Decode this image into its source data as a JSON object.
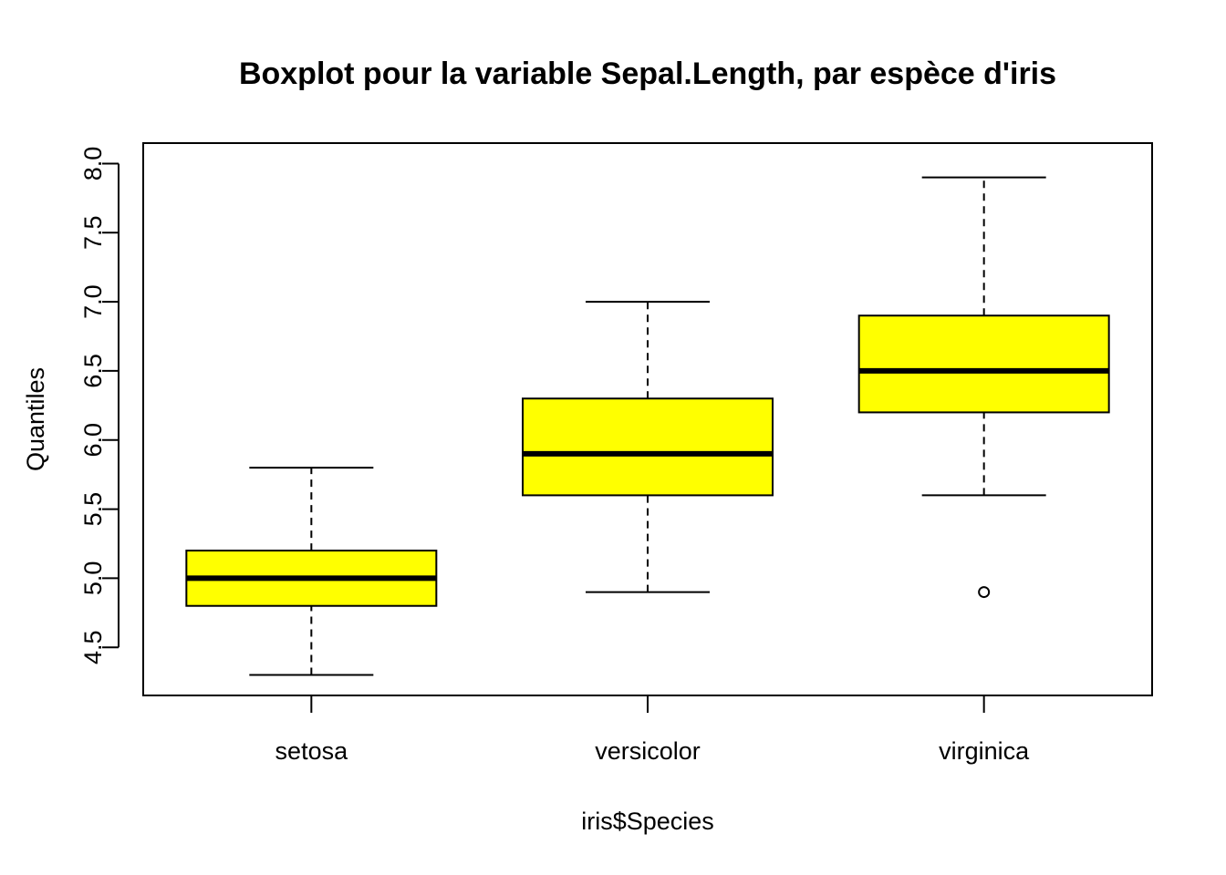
{
  "chart_data": {
    "type": "boxplot",
    "title": "Boxplot pour la variable Sepal.Length, par espèce d'iris",
    "xlabel": "iris$Species",
    "ylabel": "Quantiles",
    "ylim": [
      4.3,
      8.0
    ],
    "yticks": [
      "4.5",
      "5.0",
      "5.5",
      "6.0",
      "6.5",
      "7.0",
      "7.5",
      "8.0"
    ],
    "categories": [
      "setosa",
      "versicolor",
      "virginica"
    ],
    "box_color": "#ffff00",
    "grid": false,
    "boxes": [
      {
        "category": "setosa",
        "whisker_low": 4.3,
        "q1": 4.8,
        "median": 5.0,
        "q3": 5.2,
        "whisker_high": 5.8,
        "outliers": []
      },
      {
        "category": "versicolor",
        "whisker_low": 4.9,
        "q1": 5.6,
        "median": 5.9,
        "q3": 6.3,
        "whisker_high": 7.0,
        "outliers": []
      },
      {
        "category": "virginica",
        "whisker_low": 5.6,
        "q1": 6.2,
        "median": 6.5,
        "q3": 6.9,
        "whisker_high": 7.9,
        "outliers": [
          4.9
        ]
      }
    ]
  }
}
